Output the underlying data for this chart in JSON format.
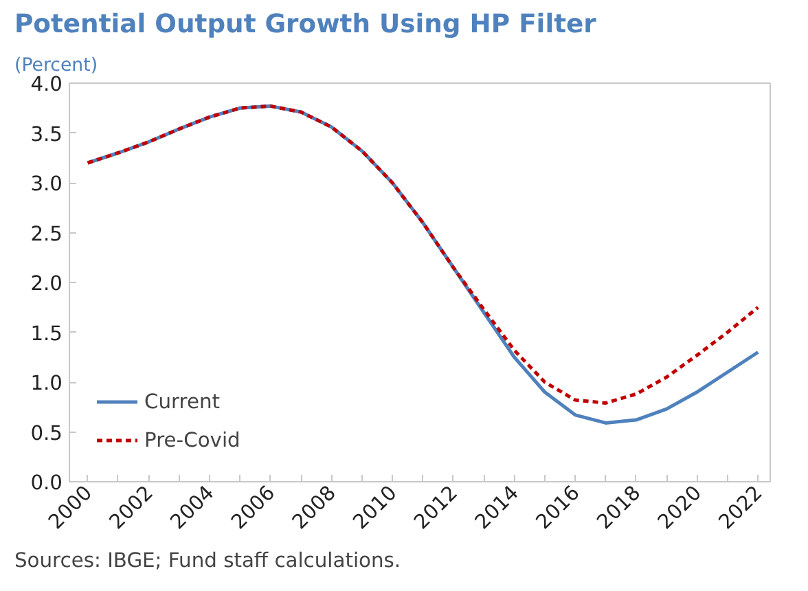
{
  "chart_data": {
    "type": "line",
    "title": "Potential Output Growth Using HP Filter",
    "subtitle": "(Percent)",
    "x": [
      2000,
      2001,
      2002,
      2003,
      2004,
      2005,
      2006,
      2007,
      2008,
      2009,
      2010,
      2011,
      2012,
      2013,
      2014,
      2015,
      2016,
      2017,
      2018,
      2019,
      2020,
      2021,
      2022
    ],
    "series": [
      {
        "name": "Current",
        "color": "#4f81bd",
        "line_style": "solid",
        "values": [
          3.2,
          3.3,
          3.41,
          3.54,
          3.66,
          3.75,
          3.77,
          3.71,
          3.56,
          3.32,
          3.0,
          2.6,
          2.15,
          1.7,
          1.25,
          0.9,
          0.67,
          0.59,
          0.62,
          0.73,
          0.9,
          1.1,
          1.3
        ]
      },
      {
        "name": "Pre-Covid",
        "color": "#c00000",
        "line_style": "dashed",
        "values": [
          3.2,
          3.3,
          3.41,
          3.54,
          3.66,
          3.75,
          3.77,
          3.71,
          3.56,
          3.32,
          3.0,
          2.6,
          2.15,
          1.73,
          1.32,
          1.0,
          0.82,
          0.79,
          0.88,
          1.05,
          1.27,
          1.5,
          1.75
        ]
      }
    ],
    "xlim": [
      1999.4,
      2022.4
    ],
    "xticks": [
      2000,
      {
        "value": 2001,
        "label": null
      },
      2002,
      {
        "value": 2003,
        "label": null
      },
      2004,
      {
        "value": 2005,
        "label": null
      },
      2006,
      {
        "value": 2007,
        "label": null
      },
      2008,
      {
        "value": 2009,
        "label": null
      },
      2010,
      {
        "value": 2011,
        "label": null
      },
      2012,
      {
        "value": 2013,
        "label": null
      },
      2014,
      {
        "value": 2015,
        "label": null
      },
      2016,
      {
        "value": 2017,
        "label": null
      },
      2018,
      {
        "value": 2019,
        "label": null
      },
      2020,
      {
        "value": 2021,
        "label": null
      },
      2022
    ],
    "ylim": [
      0,
      4
    ],
    "yticks": [
      {
        "value": 0,
        "label": "0.0"
      },
      {
        "value": 0.5,
        "label": "0.5"
      },
      {
        "value": 1,
        "label": "1.0"
      },
      {
        "value": 1.5,
        "label": "1.5"
      },
      {
        "value": 2,
        "label": "2.0"
      },
      {
        "value": 2.5,
        "label": "2.5"
      },
      {
        "value": 3,
        "label": "3.0"
      },
      {
        "value": 3.5,
        "label": "3.5"
      },
      {
        "value": 4,
        "label": "4.0"
      }
    ],
    "grid": false,
    "legend": "bottom left",
    "marker": "none",
    "annotations": [
      "Sources: IBGE; Fund staff calculations."
    ]
  }
}
